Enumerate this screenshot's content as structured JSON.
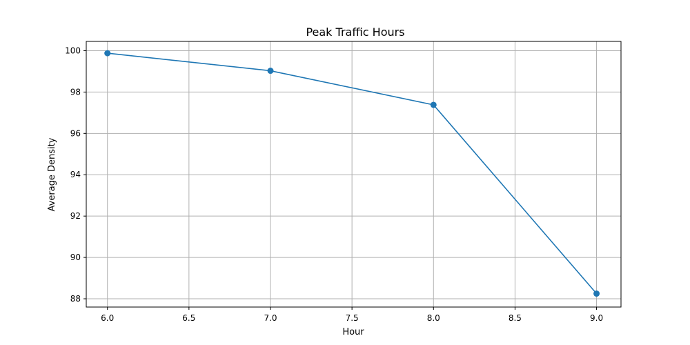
{
  "chart_data": {
    "type": "line",
    "title": "Peak Traffic Hours",
    "xlabel": "Hour",
    "ylabel": "Average Density",
    "xlim": [
      5.87,
      9.15
    ],
    "ylim": [
      87.6,
      100.45
    ],
    "xticks": [
      6.0,
      6.5,
      7.0,
      7.5,
      8.0,
      8.5,
      9.0
    ],
    "xtick_labels": [
      "6.0",
      "6.5",
      "7.0",
      "7.5",
      "8.0",
      "8.5",
      "9.0"
    ],
    "yticks": [
      88,
      90,
      92,
      94,
      96,
      98,
      100
    ],
    "ytick_labels": [
      "88",
      "90",
      "92",
      "94",
      "96",
      "98",
      "100"
    ],
    "grid": true,
    "legend": null,
    "series": [
      {
        "x": [
          6.0,
          7.0,
          8.0,
          9.0
        ],
        "y": [
          99.88,
          99.03,
          97.38,
          88.25
        ],
        "color": "#1f77b4",
        "marker": "circle"
      }
    ]
  }
}
